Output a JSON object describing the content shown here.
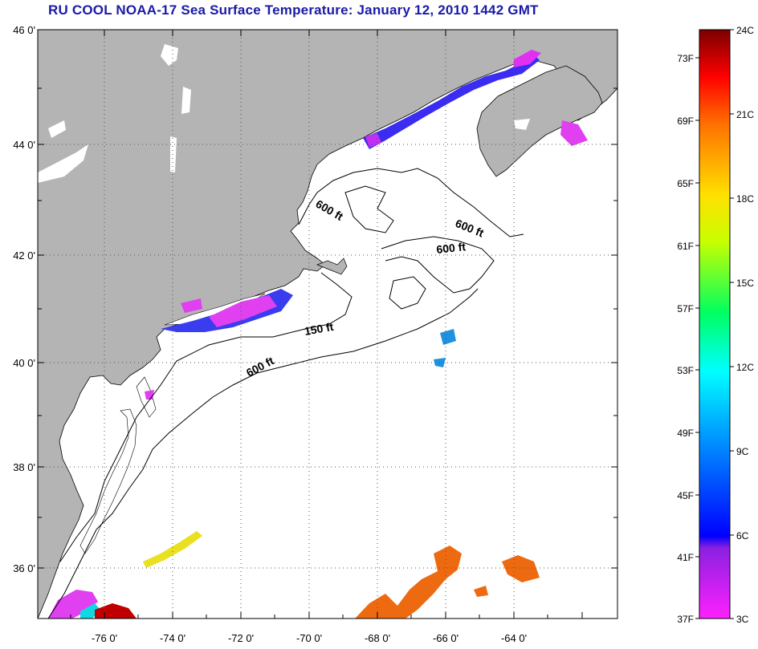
{
  "title": "RU COOL  NOAA-17  Sea Surface Temperature:  January 12, 2010 1442 GMT",
  "map": {
    "lat_labels": [
      "46 0'",
      "44 0'",
      "42 0'",
      "40 0'",
      "38 0'",
      "36 0'"
    ],
    "lon_labels": [
      "-76 0'",
      "-74 0'",
      "-72 0'",
      "-70 0'",
      "-68 0'",
      "-66 0'",
      "-64 0'"
    ],
    "contour_labels": [
      "600 ft",
      "600 ft",
      "600 ft",
      "150 ft",
      "600 ft"
    ],
    "colors": {
      "land": "#b4b4b4",
      "ocean": "#ffffff",
      "coast": "#000000"
    }
  },
  "colorbar": {
    "fahrenheit_labels": [
      "73F",
      "69F",
      "65F",
      "61F",
      "57F",
      "53F",
      "49F",
      "45F",
      "41F",
      "37F"
    ],
    "celsius_labels": [
      "24C",
      "21C",
      "18C",
      "15C",
      "12C",
      "9C",
      "6C",
      "3C"
    ],
    "colors": [
      "#ff00ff",
      "#8000ff",
      "#0000ff",
      "#0080ff",
      "#00ffff",
      "#00ff80",
      "#ffff00",
      "#ff8000",
      "#ff0000",
      "#800000"
    ]
  }
}
